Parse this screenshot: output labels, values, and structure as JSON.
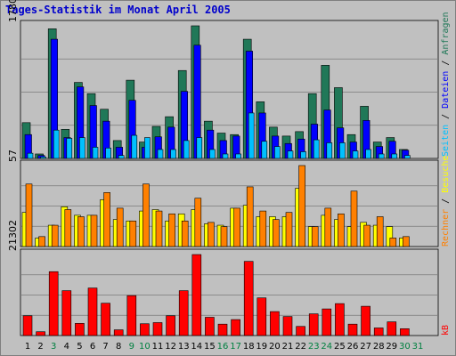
{
  "title": "Tages-Statistik im Monat April 2005",
  "chart_data": [
    {
      "type": "bar",
      "categories": [
        "1",
        "2",
        "3",
        "4",
        "5",
        "6",
        "7",
        "8",
        "9",
        "10",
        "11",
        "12",
        "13",
        "14",
        "15",
        "16",
        "17",
        "18",
        "19",
        "20",
        "21",
        "22",
        "23",
        "24",
        "25",
        "26",
        "27",
        "28",
        "29",
        "30",
        "31"
      ],
      "weekend_color": "#008040",
      "weekday_color": "#000000",
      "weekend_days": [
        3,
        9,
        10,
        16,
        17,
        23,
        24,
        30,
        31
      ],
      "ymax": 1780,
      "ymax_label": "1780",
      "grid": true,
      "series": [
        {
          "name": "Anfragen",
          "color": "#207858",
          "values": [
            480,
            60,
            1740,
            390,
            1020,
            870,
            660,
            240,
            1050,
            220,
            430,
            560,
            1180,
            1780,
            500,
            340,
            320,
            1600,
            760,
            420,
            300,
            360,
            870,
            1250,
            950,
            320,
            700,
            220,
            280,
            120,
            0
          ]
        },
        {
          "name": "Dateien",
          "color": "#0000ff",
          "values": [
            320,
            40,
            1600,
            280,
            960,
            710,
            500,
            150,
            780,
            150,
            290,
            420,
            900,
            1520,
            380,
            240,
            300,
            1440,
            610,
            300,
            200,
            260,
            460,
            650,
            410,
            220,
            510,
            160,
            230,
            110,
            0
          ]
        },
        {
          "name": "Seiten",
          "color": "#00c0ff",
          "values": [
            70,
            20,
            380,
            270,
            280,
            150,
            140,
            40,
            310,
            280,
            120,
            120,
            240,
            280,
            120,
            60,
            60,
            610,
            230,
            160,
            100,
            90,
            250,
            210,
            210,
            100,
            120,
            60,
            60,
            40,
            0
          ]
        }
      ]
    },
    {
      "type": "bar",
      "categories": [
        "1",
        "2",
        "3",
        "4",
        "5",
        "6",
        "7",
        "8",
        "9",
        "10",
        "11",
        "12",
        "13",
        "14",
        "15",
        "16",
        "17",
        "18",
        "19",
        "20",
        "21",
        "22",
        "23",
        "24",
        "25",
        "26",
        "27",
        "28",
        "29",
        "30",
        "31"
      ],
      "ymax": 57,
      "ymax_label": "57",
      "grid": true,
      "series": [
        {
          "name": "Besuche",
          "color": "#ffff00",
          "values": [
            24,
            6,
            15,
            28,
            22,
            22,
            33,
            19,
            18,
            25,
            26,
            18,
            23,
            26,
            16,
            15,
            27,
            29,
            21,
            21,
            21,
            41,
            14,
            22,
            19,
            14,
            17,
            15,
            14,
            6,
            0
          ]
        },
        {
          "name": "Rechner",
          "color": "#ff8000",
          "values": [
            44,
            7,
            15,
            26,
            21,
            22,
            38,
            27,
            18,
            44,
            25,
            23,
            18,
            34,
            17,
            14,
            27,
            42,
            25,
            19,
            24,
            57,
            14,
            27,
            23,
            39,
            15,
            21,
            6,
            7,
            0
          ]
        }
      ]
    },
    {
      "type": "bar",
      "categories": [
        "1",
        "2",
        "3",
        "4",
        "5",
        "6",
        "7",
        "8",
        "9",
        "10",
        "11",
        "12",
        "13",
        "14",
        "15",
        "16",
        "17",
        "18",
        "19",
        "20",
        "21",
        "22",
        "23",
        "24",
        "25",
        "26",
        "27",
        "28",
        "29",
        "30",
        "31"
      ],
      "ymax": 21302,
      "ymax_label": "21302",
      "grid": true,
      "series": [
        {
          "name": "kB",
          "color": "#ff0000",
          "values": [
            5200,
            1000,
            16800,
            11800,
            3200,
            12500,
            8500,
            1500,
            10500,
            3100,
            3400,
            5200,
            11800,
            21302,
            4800,
            3000,
            4200,
            19500,
            9900,
            6300,
            5000,
            2400,
            5700,
            7000,
            8400,
            3000,
            7700,
            2000,
            3600,
            1800,
            0
          ]
        }
      ]
    }
  ],
  "legend": {
    "top": {
      "left_word": "Seiten",
      "sep1": " / ",
      "mid_word": "Dateien",
      "sep2": " / ",
      "right_word": "Anfragen"
    },
    "mid": {
      "left_word": "Rechner",
      "sep": " / ",
      "right_word": "Besuche"
    },
    "bottom": {
      "label": "kB"
    }
  }
}
